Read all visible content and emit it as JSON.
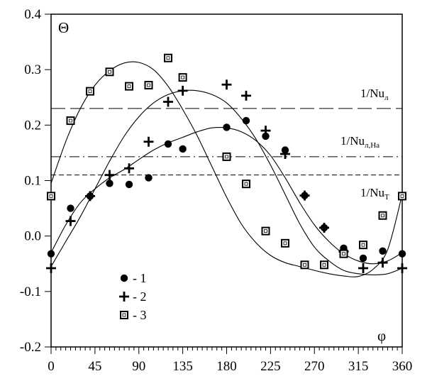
{
  "chart_data": {
    "type": "scatter",
    "xlabel": "φ",
    "ylabel": "Θ",
    "xlim": [
      0,
      360
    ],
    "ylim": [
      -0.2,
      0.4
    ],
    "xticks": [
      0,
      45,
      90,
      135,
      180,
      225,
      270,
      315,
      360
    ],
    "xtick_labels": [
      "0",
      "45",
      "90",
      "135",
      "180",
      "225",
      "270",
      "315",
      "360"
    ],
    "yticks": [
      -0.2,
      -0.1,
      0.0,
      0.1,
      0.2,
      0.3,
      0.4
    ],
    "ytick_labels": [
      "-0.2",
      "-0.1",
      "0.0",
      "0.1",
      "0.2",
      "0.3",
      "0.4"
    ],
    "grid": false,
    "legend_position": "bottom-left",
    "series": [
      {
        "name": "- 1",
        "marker": "filled-circle",
        "x": [
          0,
          20,
          40,
          60,
          80,
          100,
          120,
          135,
          180,
          200,
          220,
          240,
          260,
          280,
          300,
          320,
          340,
          360
        ],
        "y": [
          -0.032,
          0.05,
          0.072,
          0.095,
          0.093,
          0.105,
          0.166,
          0.157,
          0.196,
          0.208,
          0.18,
          0.155,
          0.073,
          0.015,
          -0.022,
          -0.04,
          -0.027,
          -0.032
        ]
      },
      {
        "name": "- 2",
        "marker": "plus",
        "x": [
          0,
          20,
          40,
          60,
          80,
          100,
          120,
          135,
          180,
          200,
          220,
          240,
          260,
          280,
          300,
          320,
          340,
          360
        ],
        "y": [
          -0.058,
          0.027,
          0.072,
          0.11,
          0.122,
          0.17,
          0.242,
          0.262,
          0.273,
          0.253,
          0.19,
          0.148,
          0.073,
          0.015,
          -0.028,
          -0.058,
          -0.048,
          -0.058
        ]
      },
      {
        "name": "- 3",
        "marker": "open-square",
        "x": [
          0,
          20,
          40,
          60,
          80,
          100,
          120,
          135,
          180,
          200,
          220,
          240,
          260,
          280,
          300,
          320,
          340,
          360
        ],
        "y": [
          0.072,
          0.208,
          0.261,
          0.296,
          0.27,
          0.272,
          0.321,
          0.286,
          0.143,
          0.094,
          0.009,
          -0.013,
          -0.052,
          -0.052,
          -0.032,
          -0.016,
          0.037,
          0.072
        ]
      }
    ],
    "fits": [
      {
        "x": [
          0,
          15,
          30,
          45,
          60,
          75,
          90,
          105,
          120,
          135,
          150,
          165,
          180,
          195,
          210,
          225,
          240,
          255,
          270,
          285,
          300,
          315,
          330,
          345,
          360
        ],
        "y": [
          -0.03,
          0.02,
          0.06,
          0.085,
          0.105,
          0.12,
          0.138,
          0.155,
          0.168,
          0.178,
          0.188,
          0.195,
          0.195,
          0.188,
          0.172,
          0.145,
          0.105,
          0.06,
          0.02,
          -0.01,
          -0.032,
          -0.045,
          -0.05,
          -0.045,
          -0.03
        ]
      },
      {
        "x": [
          0,
          15,
          30,
          45,
          60,
          75,
          90,
          105,
          120,
          135,
          150,
          165,
          180,
          195,
          210,
          225,
          240,
          255,
          270,
          285,
          300,
          315,
          330,
          345,
          360
        ],
        "y": [
          -0.055,
          -0.01,
          0.035,
          0.085,
          0.135,
          0.18,
          0.215,
          0.24,
          0.255,
          0.262,
          0.262,
          0.255,
          0.24,
          0.212,
          0.175,
          0.128,
          0.075,
          0.022,
          -0.02,
          -0.045,
          -0.062,
          -0.068,
          -0.07,
          -0.068,
          -0.058
        ]
      },
      {
        "x": [
          0,
          15,
          30,
          45,
          60,
          75,
          90,
          105,
          120,
          135,
          150,
          165,
          180,
          195,
          210,
          225,
          240,
          255,
          270,
          285,
          300,
          315,
          330,
          345,
          360
        ],
        "y": [
          0.095,
          0.17,
          0.23,
          0.272,
          0.298,
          0.312,
          0.313,
          0.3,
          0.27,
          0.228,
          0.18,
          0.125,
          0.07,
          0.022,
          -0.012,
          -0.035,
          -0.048,
          -0.055,
          -0.062,
          -0.068,
          -0.072,
          -0.073,
          -0.06,
          -0.025,
          0.075
        ]
      }
    ],
    "reference_lines": [
      {
        "y": 0.23,
        "style": "long-dash",
        "label": "1/Nu",
        "label_sub": "л"
      },
      {
        "y": 0.143,
        "style": "dash-dot",
        "label": "1/Nu",
        "label_sub": "л,Ha"
      },
      {
        "y": 0.11,
        "style": "short-dash",
        "label": "1/Nu",
        "label_sub": "T"
      }
    ]
  }
}
